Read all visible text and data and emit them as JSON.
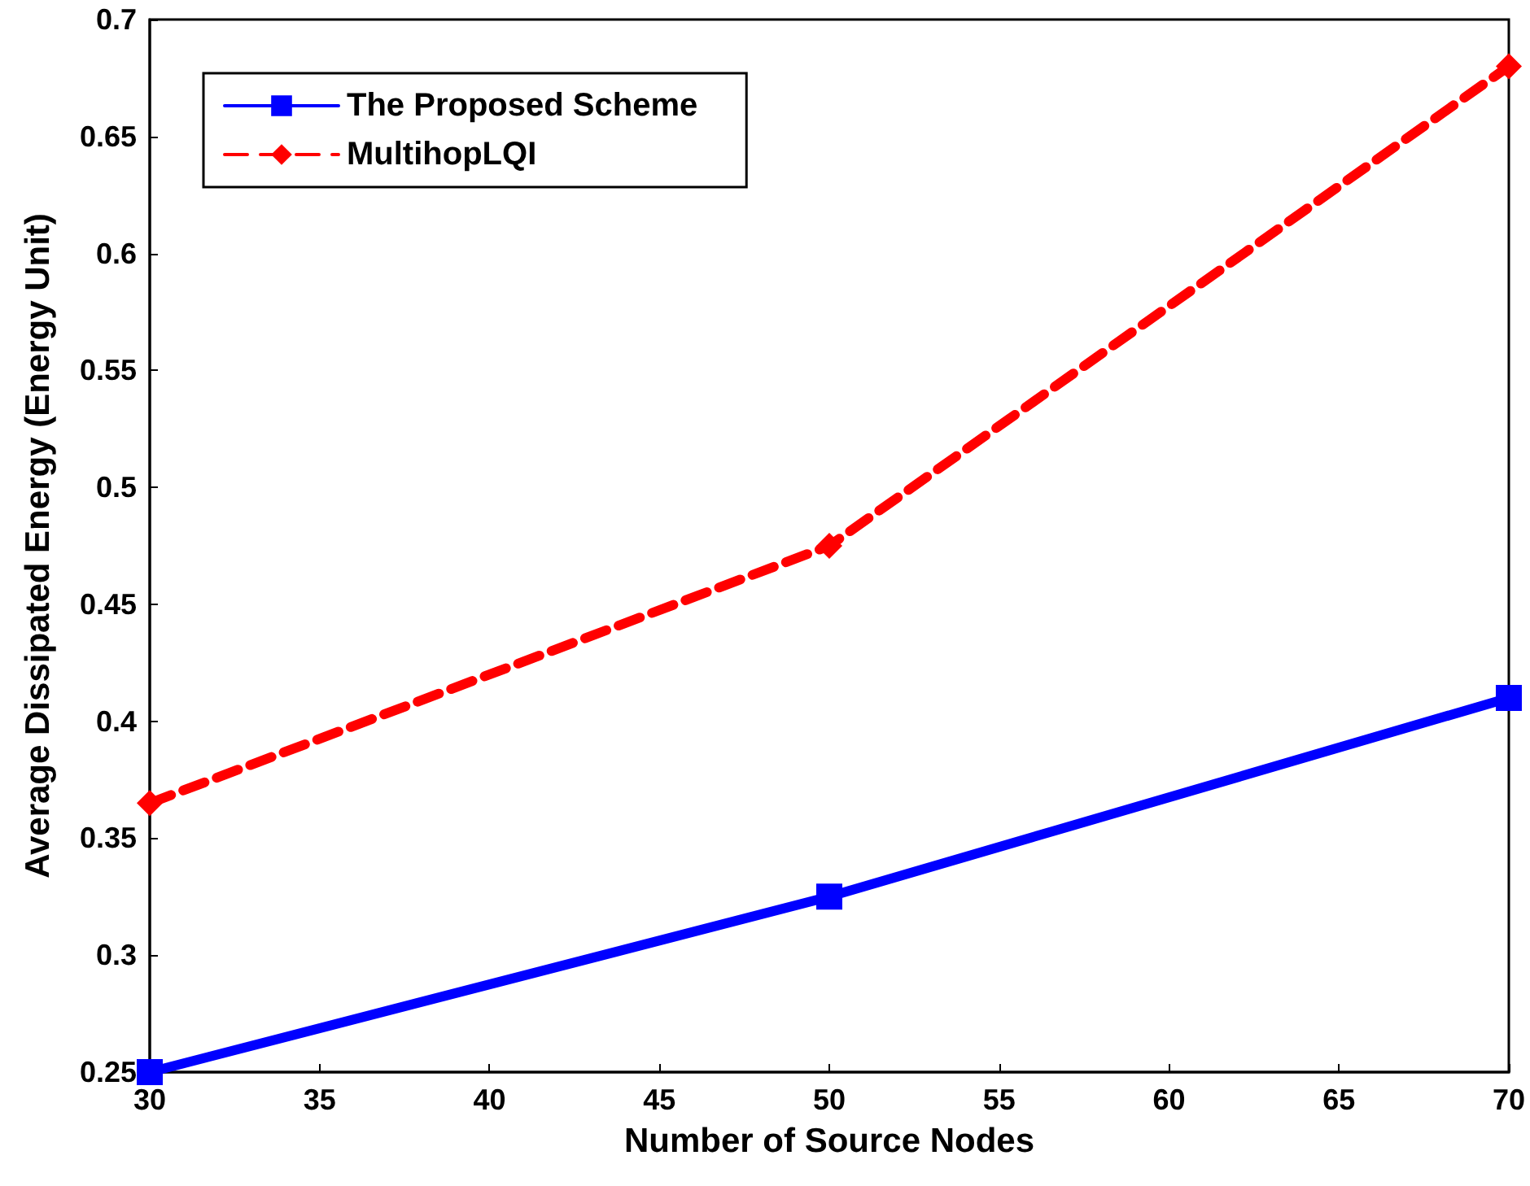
{
  "chart_data": {
    "type": "line",
    "xlabel": "Number of Source Nodes",
    "ylabel": "Average Dissipated Energy (Energy Unit)",
    "x": [
      30,
      50,
      70
    ],
    "series": [
      {
        "name": "The Proposed Scheme",
        "color": "#0000ff",
        "values": [
          0.25,
          0.325,
          0.41
        ],
        "marker": "square",
        "line_style": "solid"
      },
      {
        "name": "MultihopLQI",
        "color": "#ff0000",
        "values": [
          0.365,
          0.475,
          0.68
        ],
        "marker": "diamond",
        "line_style": "dashed"
      }
    ],
    "xlim": [
      30,
      70
    ],
    "xticks": [
      30,
      35,
      40,
      45,
      50,
      55,
      60,
      65,
      70
    ],
    "ylim": [
      0.25,
      0.7
    ],
    "yticks": [
      0.25,
      0.3,
      0.35,
      0.4,
      0.45,
      0.5,
      0.55,
      0.6,
      0.65,
      0.7
    ],
    "grid": false,
    "legend": "top left"
  }
}
